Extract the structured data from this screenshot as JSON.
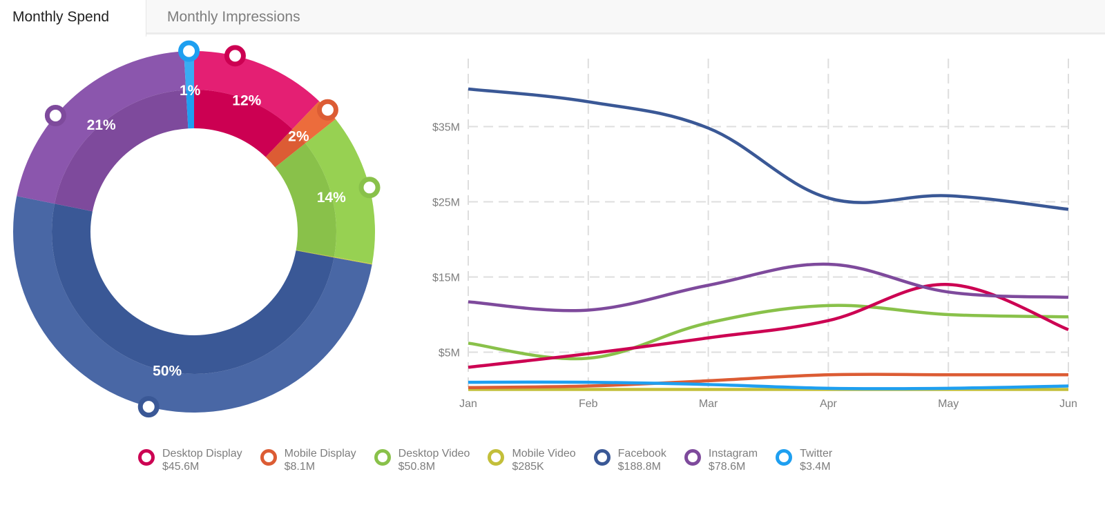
{
  "tabs": [
    {
      "label": "Monthly Spend",
      "active": true
    },
    {
      "label": "Monthly Impressions",
      "active": false
    }
  ],
  "chart_data": [
    {
      "type": "pie",
      "variant": "donut",
      "title": "Monthly Spend share by channel",
      "start": "12 o'clock, clockwise",
      "slices": [
        {
          "name": "Desktop Display",
          "value": 45.6,
          "label": "12%",
          "color": "#cc0052",
          "light": "#e41f73"
        },
        {
          "name": "Mobile Display",
          "value": 8.1,
          "label": "2%",
          "color": "#dc5c34",
          "light": "#ec6c3c"
        },
        {
          "name": "Desktop Video",
          "value": 50.8,
          "label": "14%",
          "color": "#89c14a",
          "light": "#97d152"
        },
        {
          "name": "Mobile Video",
          "value": 0.285,
          "label": "",
          "color": "#c3bf3a",
          "light": "#d1cd44"
        },
        {
          "name": "Facebook",
          "value": 188.8,
          "label": "50%",
          "color": "#3a5896",
          "light": "#4967a5"
        },
        {
          "name": "Instagram",
          "value": 78.6,
          "label": "21%",
          "color": "#7e4a9c",
          "light": "#8b56ad"
        },
        {
          "name": "Twitter",
          "value": 3.4,
          "label": "1%",
          "color": "#1e9ff0",
          "light": "#39acf3"
        }
      ]
    },
    {
      "type": "line",
      "title": "",
      "xlabel": "",
      "ylabel": "",
      "categories": [
        "Jan",
        "Feb",
        "Mar",
        "Apr",
        "May",
        "Jun"
      ],
      "yticks": [
        5,
        15,
        25,
        35
      ],
      "ytick_labels": [
        "$5M",
        "$15M",
        "$25M",
        "$35M"
      ],
      "ylim": [
        0,
        43
      ],
      "grid": true,
      "legend": "bottom",
      "series": [
        {
          "name": "Desktop Display",
          "color": "#cc0052",
          "values": [
            3.0,
            4.8,
            6.9,
            9.2,
            14.0,
            8.0
          ]
        },
        {
          "name": "Mobile Display",
          "color": "#dc5c34",
          "values": [
            0.3,
            0.5,
            1.2,
            2.0,
            2.0,
            2.0
          ]
        },
        {
          "name": "Desktop Video",
          "color": "#89c14a",
          "values": [
            6.2,
            4.2,
            8.9,
            11.2,
            10.0,
            9.7
          ]
        },
        {
          "name": "Mobile Video",
          "color": "#c3bf3a",
          "values": [
            0.05,
            0.05,
            0.05,
            0.05,
            0.05,
            0.05
          ]
        },
        {
          "name": "Facebook",
          "color": "#3a5896",
          "values": [
            40.0,
            38.3,
            34.8,
            25.5,
            25.8,
            24.0
          ]
        },
        {
          "name": "Instagram",
          "color": "#7e4a9c",
          "values": [
            11.7,
            10.6,
            13.9,
            16.7,
            13.0,
            12.3
          ]
        },
        {
          "name": "Twitter",
          "color": "#1e9ff0",
          "values": [
            1.0,
            1.0,
            0.7,
            0.2,
            0.2,
            0.5
          ]
        }
      ]
    }
  ],
  "legend": [
    {
      "name": "Desktop Display",
      "value": "$45.6M",
      "color": "#cc0052"
    },
    {
      "name": "Mobile Display",
      "value": "$8.1M",
      "color": "#dc5c34"
    },
    {
      "name": "Desktop Video",
      "value": "$50.8M",
      "color": "#89c14a"
    },
    {
      "name": "Mobile Video",
      "value": "$285K",
      "color": "#c3bf3a"
    },
    {
      "name": "Facebook",
      "value": "$188.8M",
      "color": "#3a5896"
    },
    {
      "name": "Instagram",
      "value": "$78.6M",
      "color": "#7e4a9c"
    },
    {
      "name": "Twitter",
      "value": "$3.4M",
      "color": "#1e9ff0"
    }
  ]
}
